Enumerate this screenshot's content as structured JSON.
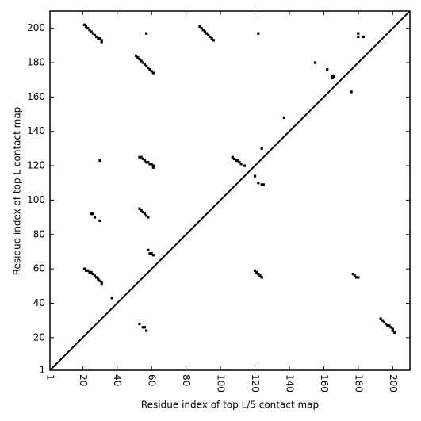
{
  "chart_data": {
    "type": "scatter",
    "xlabel": "Residue index of top L/5 contact map",
    "ylabel": "Residue index of top L contact map",
    "xlim": [
      1,
      210
    ],
    "ylim": [
      1,
      210
    ],
    "xticks": [
      1,
      20,
      40,
      60,
      80,
      100,
      120,
      140,
      160,
      180,
      200
    ],
    "yticks": [
      1,
      20,
      40,
      60,
      80,
      100,
      120,
      140,
      160,
      180,
      200
    ],
    "color": "#000000",
    "x": [
      21,
      22,
      23,
      24,
      25,
      26,
      27,
      28,
      29,
      30,
      31,
      31,
      57,
      88,
      89,
      90,
      91,
      92,
      93,
      94,
      95,
      96,
      122,
      180,
      180,
      183,
      51,
      52,
      53,
      54,
      55,
      56,
      57,
      58,
      59,
      60,
      61,
      155,
      162,
      165,
      166,
      165,
      176,
      137,
      124,
      53,
      54,
      55,
      56,
      57,
      58,
      59,
      60,
      61,
      61,
      30,
      107,
      108,
      109,
      110,
      111,
      112,
      114,
      120,
      122,
      124,
      125,
      25,
      26,
      27,
      30,
      53,
      54,
      55,
      56,
      57,
      58,
      58,
      59,
      60,
      61,
      21,
      22,
      23,
      24,
      25,
      26,
      27,
      28,
      29,
      30,
      31,
      31,
      37,
      120,
      121,
      122,
      123,
      124,
      177,
      178,
      179,
      180,
      53,
      55,
      56,
      57,
      193,
      194,
      195,
      196,
      197,
      198,
      199,
      200,
      200,
      201
    ],
    "values": [
      202,
      201,
      200,
      199,
      198,
      197,
      196,
      195,
      194,
      194,
      193,
      192,
      197,
      201,
      200,
      199,
      198,
      197,
      196,
      195,
      194,
      193,
      197,
      197,
      195,
      195,
      184,
      183,
      182,
      181,
      180,
      179,
      178,
      177,
      176,
      175,
      174,
      180,
      176,
      172,
      172,
      171,
      163,
      148,
      130,
      125,
      125,
      124,
      123,
      122,
      122,
      121,
      121,
      119,
      120,
      123,
      125,
      124,
      123,
      123,
      122,
      121,
      120,
      114,
      110,
      109,
      109,
      92,
      92,
      90,
      88,
      95,
      94,
      93,
      92,
      91,
      90,
      71,
      69,
      69,
      68,
      60,
      59,
      59,
      58,
      58,
      57,
      56,
      55,
      54,
      53,
      52,
      51,
      43,
      59,
      58,
      57,
      56,
      55,
      57,
      56,
      55,
      55,
      28,
      26,
      26,
      24,
      31,
      30,
      29,
      28,
      27,
      27,
      26,
      25,
      24,
      23
    ]
  }
}
